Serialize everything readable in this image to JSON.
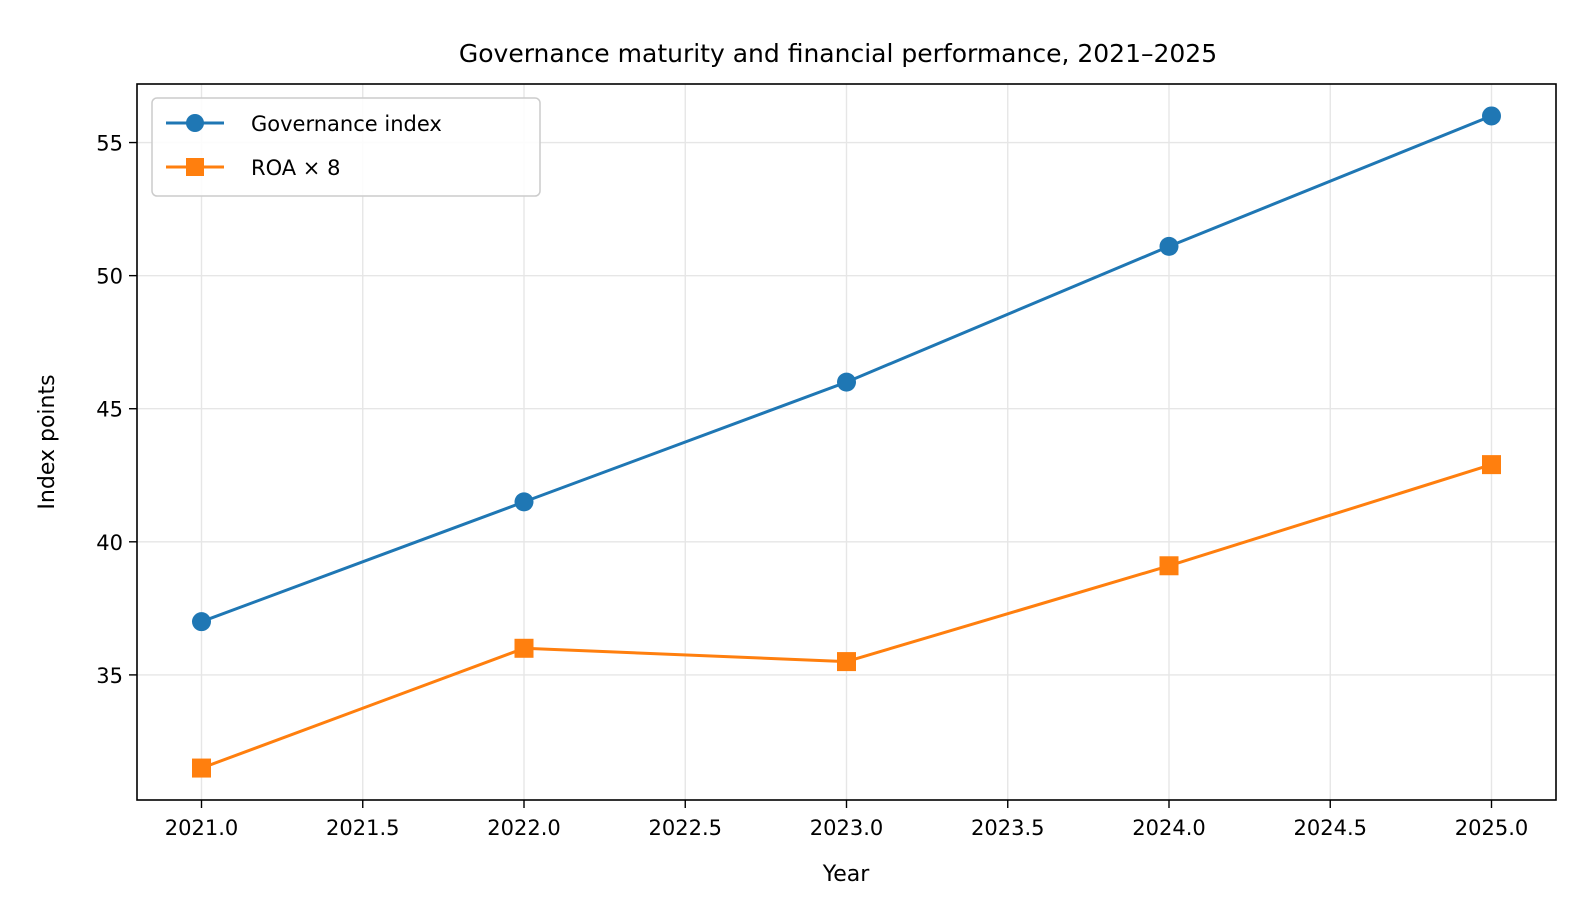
{
  "chart_data": {
    "type": "line",
    "title": "Governance maturity and financial performance, 2021–2025",
    "xlabel": "Year",
    "ylabel": "Index points",
    "x": [
      2021,
      2022,
      2023,
      2024,
      2025
    ],
    "xlim": [
      2020.8,
      2025.2
    ],
    "ylim": [
      30.3,
      57.2
    ],
    "x_ticks": [
      "2021.0",
      "2021.5",
      "2022.0",
      "2022.5",
      "2023.0",
      "2023.5",
      "2024.0",
      "2024.5",
      "2025.0"
    ],
    "x_tick_values": [
      2021.0,
      2021.5,
      2022.0,
      2022.5,
      2023.0,
      2023.5,
      2024.0,
      2024.5,
      2025.0
    ],
    "y_ticks": [
      "35",
      "40",
      "45",
      "50",
      "55"
    ],
    "y_tick_values": [
      35,
      40,
      45,
      50,
      55
    ],
    "grid": true,
    "legend_position": "top-left",
    "series": [
      {
        "name": "Governance index",
        "values": [
          37.0,
          41.5,
          46.0,
          51.1,
          56.0
        ],
        "color": "#1f77b4",
        "marker": "circle"
      },
      {
        "name": "ROA × 8",
        "values": [
          31.5,
          36.0,
          35.5,
          39.1,
          42.9
        ],
        "color": "#ff7f0e",
        "marker": "square"
      }
    ]
  }
}
